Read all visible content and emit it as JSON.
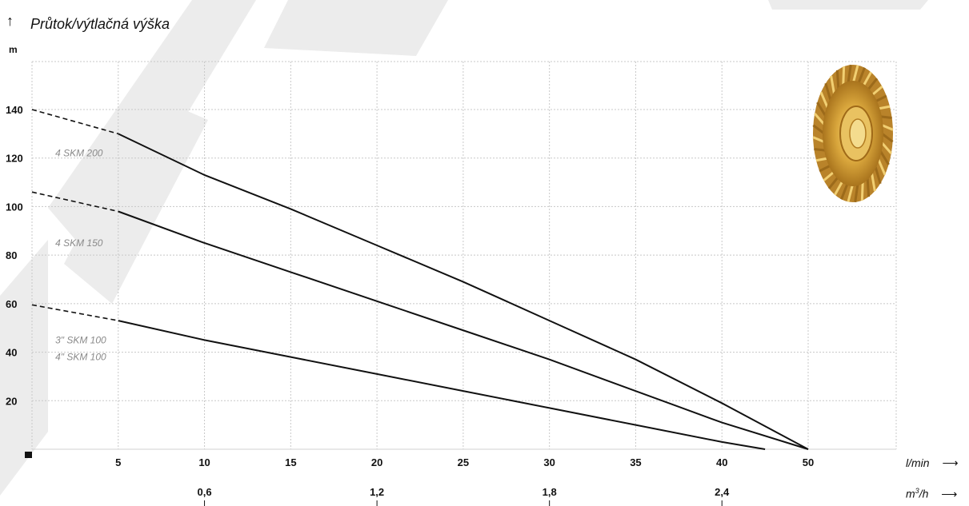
{
  "chart_data": {
    "type": "line",
    "title": "Průtok/výtlačná výška",
    "ylabel": "m",
    "xlabel": "l/min",
    "x2label_base": "m",
    "x2label_sup": "3",
    "x2label_tail": "/h",
    "xlim": [
      0,
      50
    ],
    "ylim": [
      0,
      160
    ],
    "x_ticks": [
      5,
      10,
      15,
      20,
      25,
      30,
      35,
      40,
      50
    ],
    "y_ticks": [
      20,
      40,
      60,
      80,
      100,
      120,
      140
    ],
    "x2_ticks": [
      {
        "label": "0,6",
        "at": 10
      },
      {
        "label": "1,2",
        "at": 20
      },
      {
        "label": "1,8",
        "at": 30
      },
      {
        "label": "2,4",
        "at": 40
      }
    ],
    "grid": true,
    "series": [
      {
        "name": "4 SKM 200",
        "label_at": [
          0.7,
          122
        ],
        "dashed": [
          [
            0,
            140
          ],
          [
            5,
            130
          ]
        ],
        "x": [
          5,
          10,
          15,
          20,
          25,
          30,
          35,
          40,
          45
        ],
        "y": [
          130,
          113,
          99,
          84,
          69,
          53,
          37,
          19,
          0
        ]
      },
      {
        "name": "4 SKM 150",
        "label_at": [
          0.7,
          85
        ],
        "dashed": [
          [
            0,
            106
          ],
          [
            5,
            98
          ]
        ],
        "x": [
          5,
          10,
          15,
          20,
          25,
          30,
          35,
          40,
          45
        ],
        "y": [
          98,
          85,
          73,
          61,
          49,
          37,
          24,
          11,
          0
        ]
      },
      {
        "name": "3\" SKM 100",
        "label_at": [
          0.7,
          45
        ],
        "dashed": [
          [
            0,
            59.5
          ],
          [
            5,
            53
          ]
        ],
        "x": [
          5,
          10,
          15,
          20,
          25,
          30,
          35,
          40,
          42.5
        ],
        "y": [
          53,
          45,
          38,
          31,
          24,
          17,
          10,
          3,
          0
        ]
      },
      {
        "name": "4\" SKM 100",
        "label_at": [
          0.7,
          38
        ],
        "dashed": [],
        "x": [],
        "y": []
      }
    ],
    "colors": {
      "line": "#111111",
      "grid": "#c8c8c8",
      "label": "#8a8a8a",
      "watermark": "#ececec",
      "impeller": "#d4a032"
    }
  }
}
